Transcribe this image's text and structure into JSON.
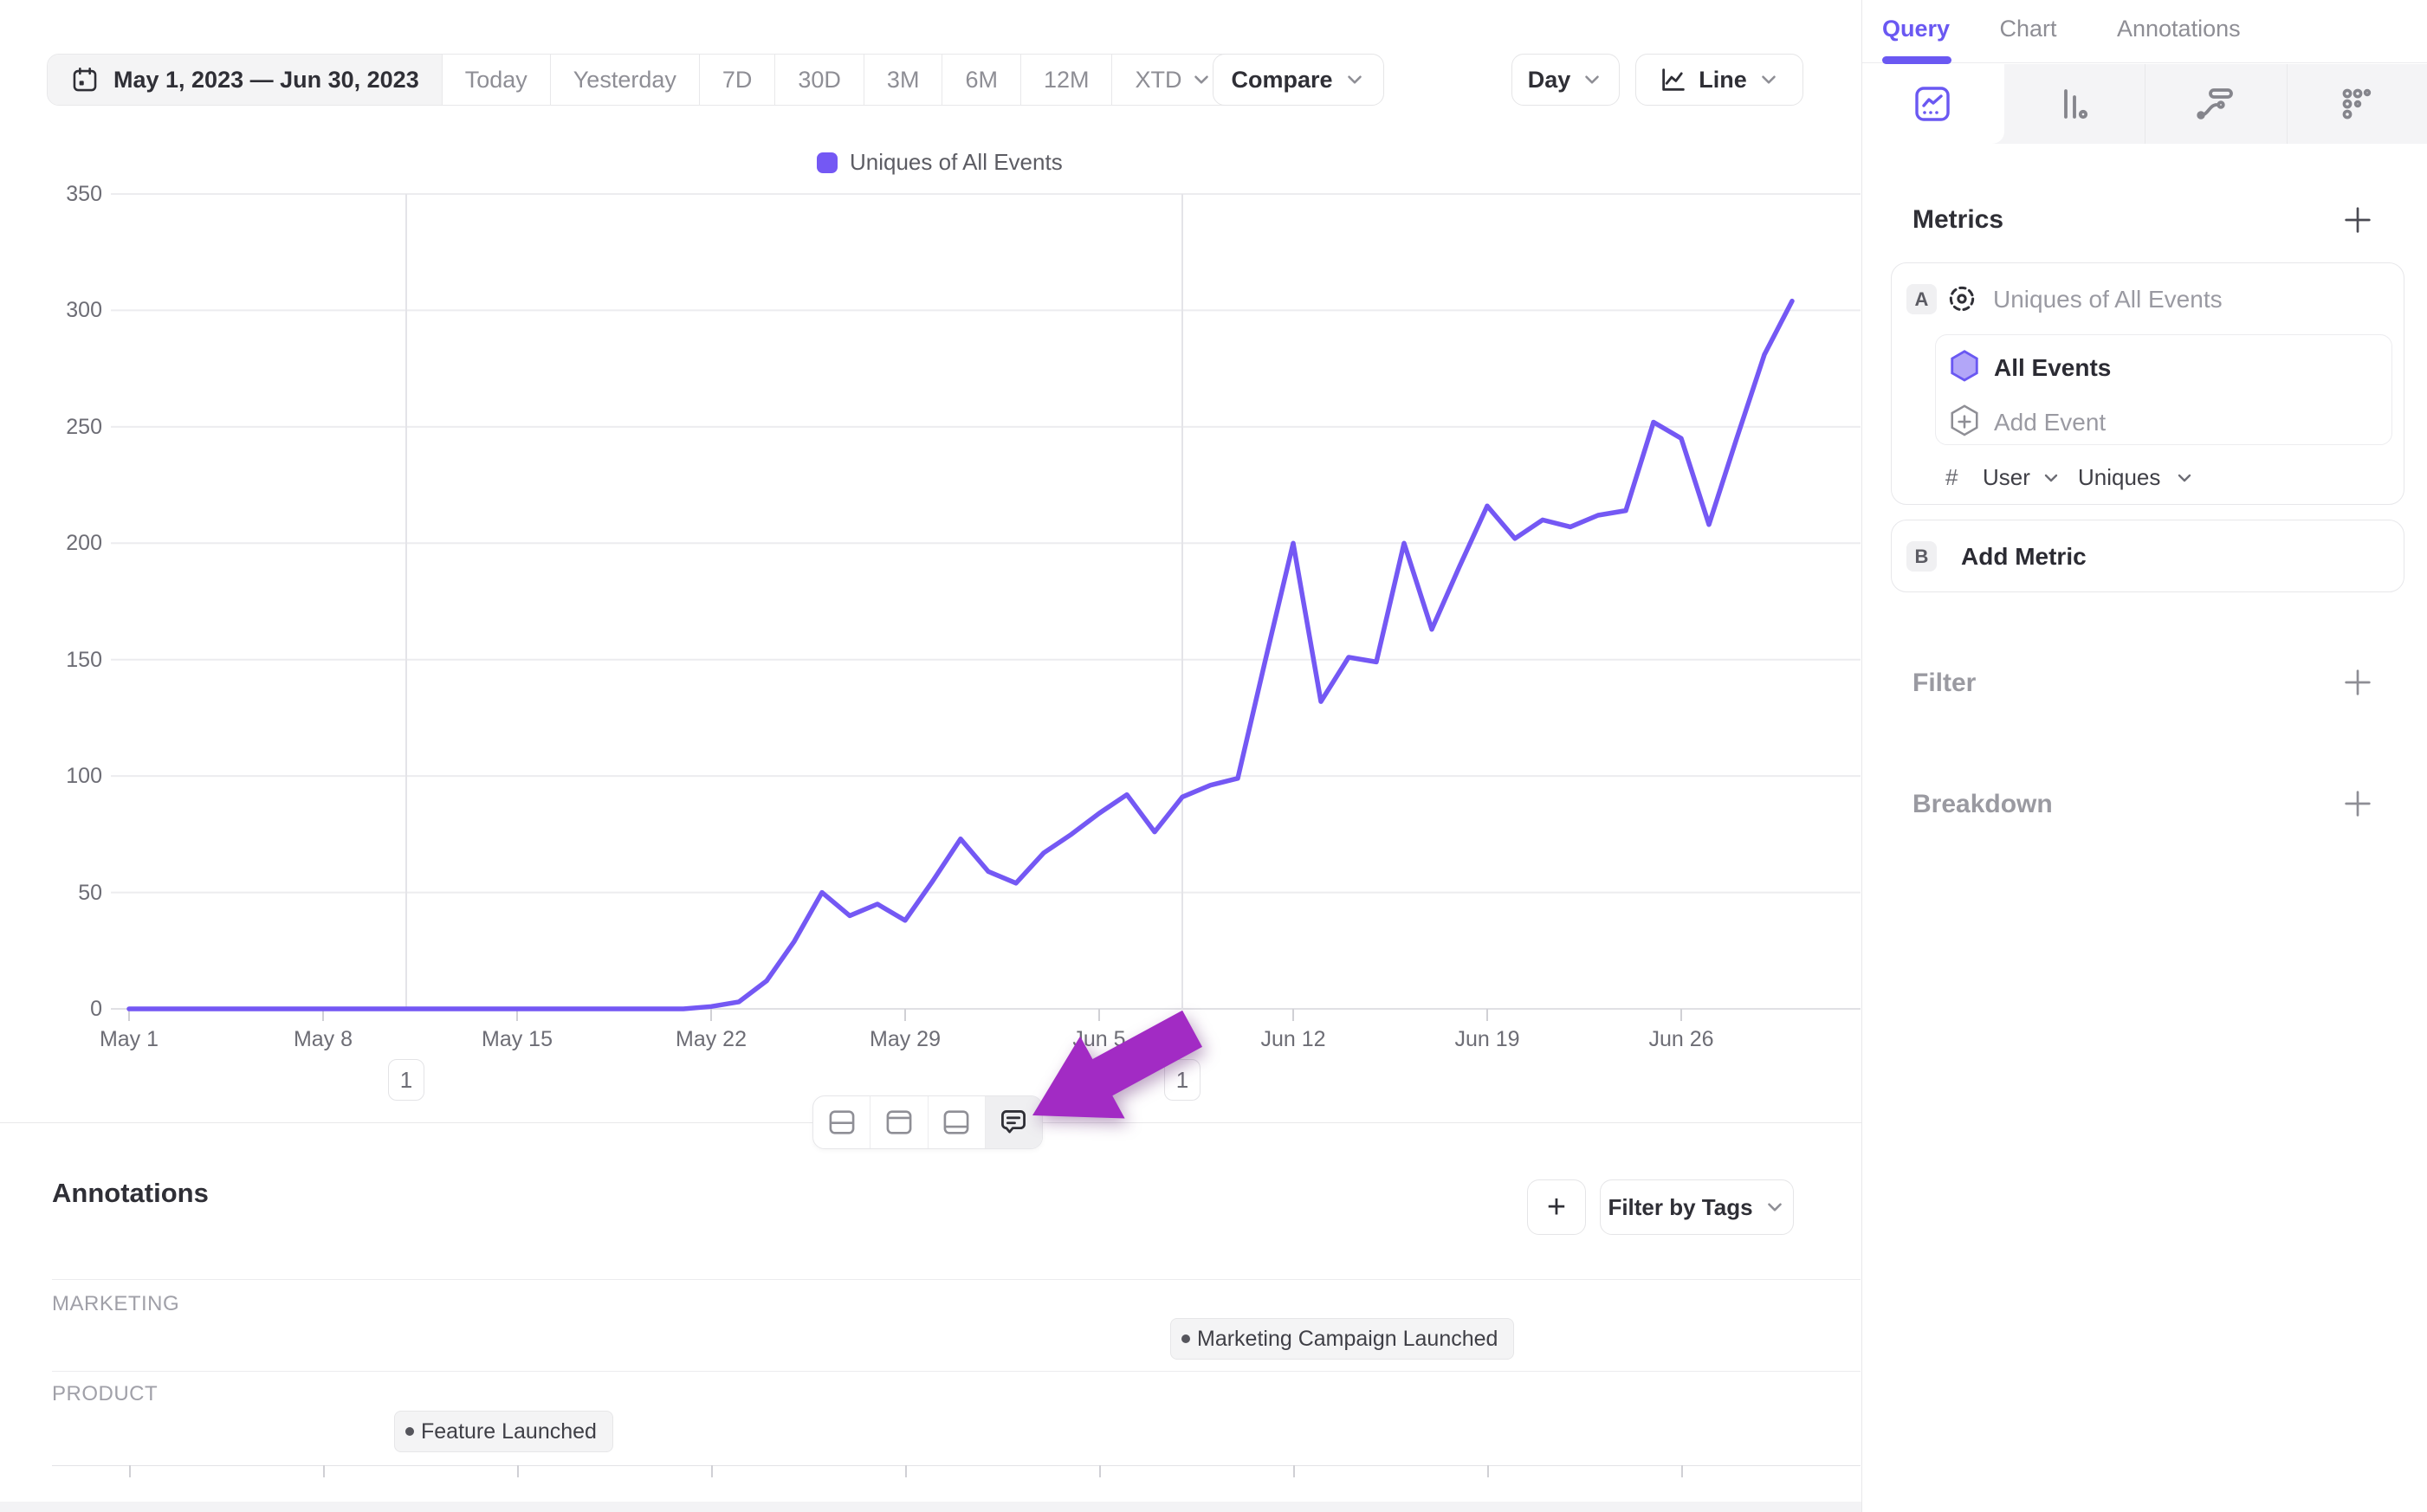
{
  "colors": {
    "accent": "#6a58f2",
    "line": "#7458f4",
    "arrow": "#a22bc4",
    "grid": "#ececef",
    "legend_swatch": "#7458f4"
  },
  "toolbar": {
    "date_range": "May 1, 2023 — Jun 30, 2023",
    "presets": [
      "Today",
      "Yesterday",
      "7D",
      "30D",
      "3M",
      "6M",
      "12M"
    ],
    "xtd_label": "XTD",
    "compare_label": "Compare",
    "granularity_label": "Day",
    "chart_type_label": "Line"
  },
  "legend": {
    "label": "Uniques of All Events"
  },
  "chart_data": {
    "type": "line",
    "title": "Uniques of All Events, May 1 2023 - Jun 30 2023, daily",
    "series_name": "Uniques of All Events",
    "xlabel": "",
    "ylabel": "",
    "ylim": [
      0,
      350
    ],
    "grid": "horizontal",
    "y_ticks": [
      0,
      50,
      100,
      150,
      200,
      250,
      300,
      350
    ],
    "x_tick_labels": [
      "May 1",
      "May 8",
      "May 15",
      "May 22",
      "May 29",
      "Jun 5",
      "Jun 12",
      "Jun 19",
      "Jun 26"
    ],
    "x_tick_days": [
      0,
      7,
      14,
      21,
      28,
      35,
      42,
      49,
      56
    ],
    "x_start": "May 1, 2023",
    "x_end": "Jun 30, 2023",
    "values": [
      0,
      0,
      0,
      0,
      0,
      0,
      0,
      0,
      0,
      0,
      0,
      0,
      0,
      0,
      0,
      0,
      0,
      0,
      0,
      0,
      0,
      1,
      3,
      12,
      29,
      50,
      40,
      45,
      38,
      55,
      73,
      59,
      54,
      67,
      75,
      84,
      92,
      76,
      91,
      96,
      99,
      150,
      200,
      132,
      151,
      149,
      200,
      163,
      190,
      216,
      202,
      210,
      207,
      212,
      214,
      252,
      245,
      208,
      245,
      281,
      304
    ]
  },
  "annotation_markers": [
    {
      "label": "1",
      "day": 10
    },
    {
      "label": "1",
      "day": 38
    }
  ],
  "layout_toolbar": {
    "icons": [
      "split-rows",
      "panel-top",
      "panel-bottom",
      "comment"
    ],
    "active": "comment"
  },
  "annotations_panel": {
    "heading": "Annotations",
    "add_label": "+",
    "filter_button": "Filter by Tags",
    "groups": [
      {
        "label": "MARKETING",
        "pill": "Marketing Campaign Launched",
        "day": 38
      },
      {
        "label": "PRODUCT",
        "pill": "Feature Launched",
        "day": 10
      }
    ]
  },
  "sidebar": {
    "tabs": [
      {
        "label": "Query",
        "active": true
      },
      {
        "label": "Chart",
        "active": false
      },
      {
        "label": "Annotations",
        "active": false
      }
    ],
    "chart_types": [
      "insights-line",
      "bar",
      "flow",
      "dots"
    ],
    "active_chart_type": "insights-line",
    "metrics": {
      "heading": "Metrics",
      "metric_a": {
        "badge": "A",
        "name": "Uniques of All Events",
        "event": "All Events",
        "add_event": "Add Event",
        "hash": "#",
        "entity": "User",
        "aggregation": "Uniques"
      },
      "metric_b": {
        "badge": "B",
        "label": "Add Metric"
      }
    },
    "filter": {
      "label": "Filter"
    },
    "breakdown": {
      "label": "Breakdown"
    }
  }
}
